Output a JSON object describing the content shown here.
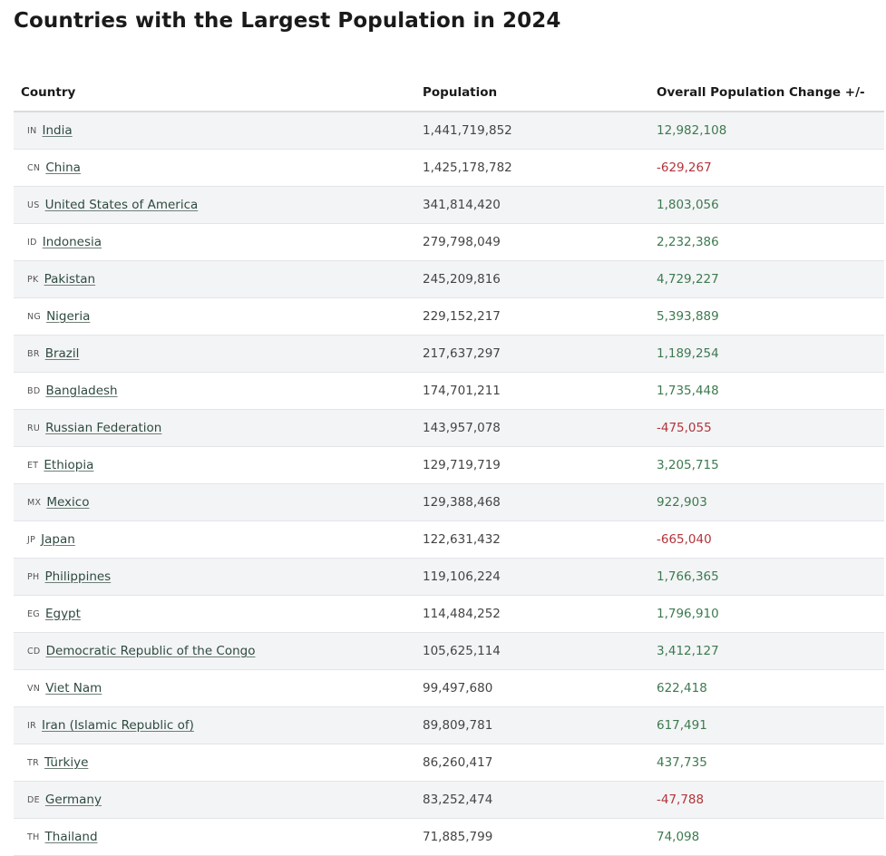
{
  "page": {
    "title": "Countries with the Largest Population in 2024"
  },
  "table": {
    "headers": {
      "country": "Country",
      "population": "Population",
      "change": "Overall Population Change +/-"
    },
    "colors": {
      "positive": "#3d7a4f",
      "negative": "#b2343a",
      "stripe": "#f3f4f6"
    },
    "rows": [
      {
        "code": "IN",
        "name": "India",
        "population": "1,441,719,852",
        "change": "12,982,108",
        "trend": "up"
      },
      {
        "code": "CN",
        "name": "China",
        "population": "1,425,178,782",
        "change": "-629,267",
        "trend": "down"
      },
      {
        "code": "US",
        "name": "United States of America",
        "population": "341,814,420",
        "change": "1,803,056",
        "trend": "up"
      },
      {
        "code": "ID",
        "name": "Indonesia",
        "population": "279,798,049",
        "change": "2,232,386",
        "trend": "up"
      },
      {
        "code": "PK",
        "name": "Pakistan",
        "population": "245,209,816",
        "change": "4,729,227",
        "trend": "up"
      },
      {
        "code": "NG",
        "name": "Nigeria",
        "population": "229,152,217",
        "change": "5,393,889",
        "trend": "up"
      },
      {
        "code": "BR",
        "name": "Brazil",
        "population": "217,637,297",
        "change": "1,189,254",
        "trend": "up"
      },
      {
        "code": "BD",
        "name": "Bangladesh",
        "population": "174,701,211",
        "change": "1,735,448",
        "trend": "up"
      },
      {
        "code": "RU",
        "name": "Russian Federation",
        "population": "143,957,078",
        "change": "-475,055",
        "trend": "down"
      },
      {
        "code": "ET",
        "name": "Ethiopia",
        "population": "129,719,719",
        "change": "3,205,715",
        "trend": "up"
      },
      {
        "code": "MX",
        "name": "Mexico",
        "population": "129,388,468",
        "change": "922,903",
        "trend": "up"
      },
      {
        "code": "JP",
        "name": "Japan",
        "population": "122,631,432",
        "change": "-665,040",
        "trend": "down"
      },
      {
        "code": "PH",
        "name": "Philippines",
        "population": "119,106,224",
        "change": "1,766,365",
        "trend": "up"
      },
      {
        "code": "EG",
        "name": "Egypt",
        "population": "114,484,252",
        "change": "1,796,910",
        "trend": "up"
      },
      {
        "code": "CD",
        "name": "Democratic Republic of the Congo",
        "population": "105,625,114",
        "change": "3,412,127",
        "trend": "up"
      },
      {
        "code": "VN",
        "name": "Viet Nam",
        "population": "99,497,680",
        "change": "622,418",
        "trend": "up"
      },
      {
        "code": "IR",
        "name": "Iran (Islamic Republic of)",
        "population": "89,809,781",
        "change": "617,491",
        "trend": "up"
      },
      {
        "code": "TR",
        "name": "Türkiye",
        "population": "86,260,417",
        "change": "437,735",
        "trend": "up"
      },
      {
        "code": "DE",
        "name": "Germany",
        "population": "83,252,474",
        "change": "-47,788",
        "trend": "down"
      },
      {
        "code": "TH",
        "name": "Thailand",
        "population": "71,885,799",
        "change": "74,098",
        "trend": "up"
      }
    ]
  }
}
